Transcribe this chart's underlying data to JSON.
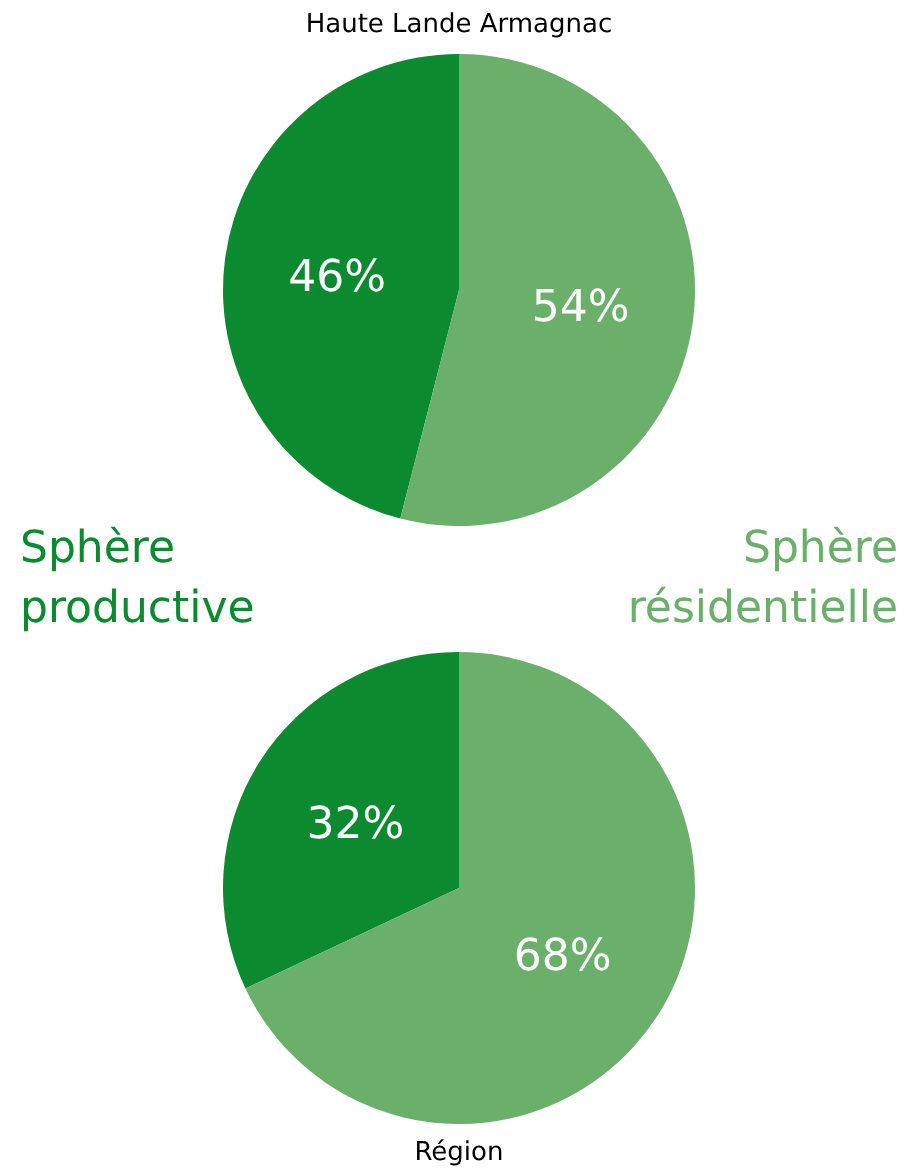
{
  "chart_data": [
    {
      "type": "pie",
      "title": "Haute Lande Armagnac",
      "categories": [
        "Sphère productive",
        "Sphère résidentielle"
      ],
      "values": [
        46,
        54
      ],
      "colors": [
        "#0b8a2f",
        "#6aaf6a"
      ],
      "value_labels": [
        "46%",
        "54%"
      ]
    },
    {
      "type": "pie",
      "title": "Région",
      "categories": [
        null,
        null
      ],
      "values": [
        32,
        68
      ],
      "colors": [
        "#0b8a2f",
        "#6aaf6a"
      ],
      "value_labels": [
        "32%",
        "68%"
      ]
    }
  ]
}
